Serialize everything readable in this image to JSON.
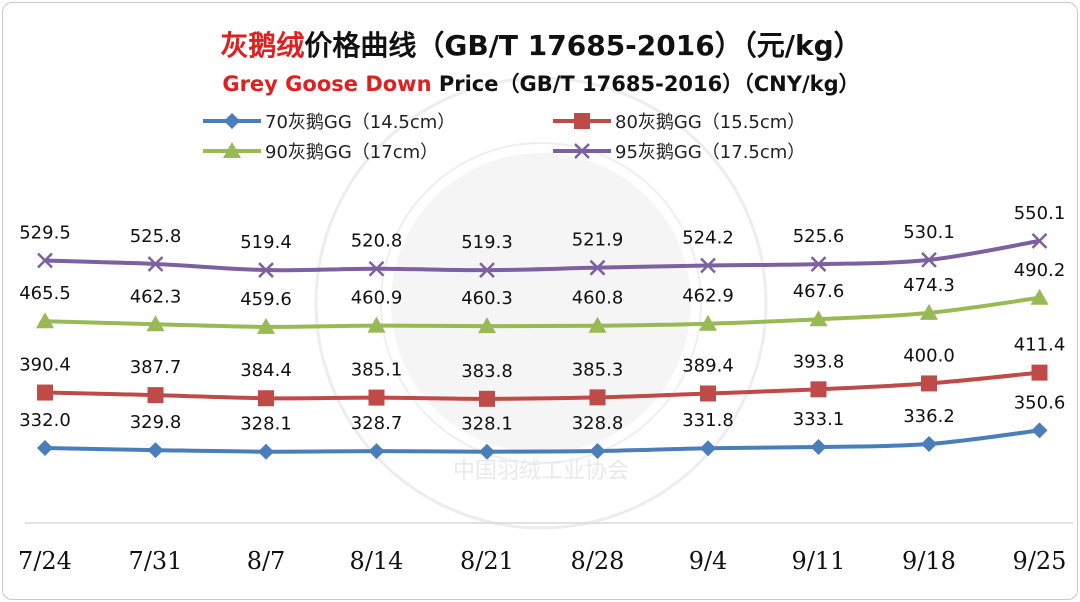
{
  "chart_data": {
    "type": "line",
    "title_red": "灰鹅绒",
    "title_rest": "价格曲线（GB/T 17685-2016）（元/kg）",
    "subtitle_red": "Grey Goose Down",
    "subtitle_rest": " Price（GB/T 17685-2016）（CNY/kg）",
    "categories": [
      "7/24",
      "7/31",
      "8/7",
      "8/14",
      "8/21",
      "8/28",
      "9/4",
      "9/11",
      "9/18",
      "9/25"
    ],
    "series": [
      {
        "name": "70灰鹅GG（14.5cm）",
        "color": "#4a7ebb",
        "marker": "diamond",
        "values": [
          332.0,
          329.8,
          328.1,
          328.7,
          328.1,
          328.8,
          331.8,
          333.1,
          336.2,
          350.6
        ]
      },
      {
        "name": "80灰鹅GG（15.5cm）",
        "color": "#be4b48",
        "marker": "square",
        "values": [
          390.4,
          387.7,
          384.4,
          385.1,
          383.8,
          385.3,
          389.4,
          393.8,
          400.0,
          411.4
        ]
      },
      {
        "name": "90灰鹅GG（17cm）",
        "color": "#98b954",
        "marker": "triangle",
        "values": [
          465.5,
          462.3,
          459.6,
          460.9,
          460.3,
          460.8,
          462.9,
          467.6,
          474.3,
          490.2
        ]
      },
      {
        "name": "95灰鹅GG（17.5cm）",
        "color": "#7d60a0",
        "marker": "x",
        "values": [
          529.5,
          525.8,
          519.4,
          520.8,
          519.3,
          521.9,
          524.2,
          525.6,
          530.1,
          550.1
        ]
      }
    ],
    "watermark_text": "中国羽绒工业协会",
    "grid": false,
    "legend_position": "top"
  },
  "colors": {
    "title_red": "#e02020",
    "title_dark": "#111111"
  }
}
